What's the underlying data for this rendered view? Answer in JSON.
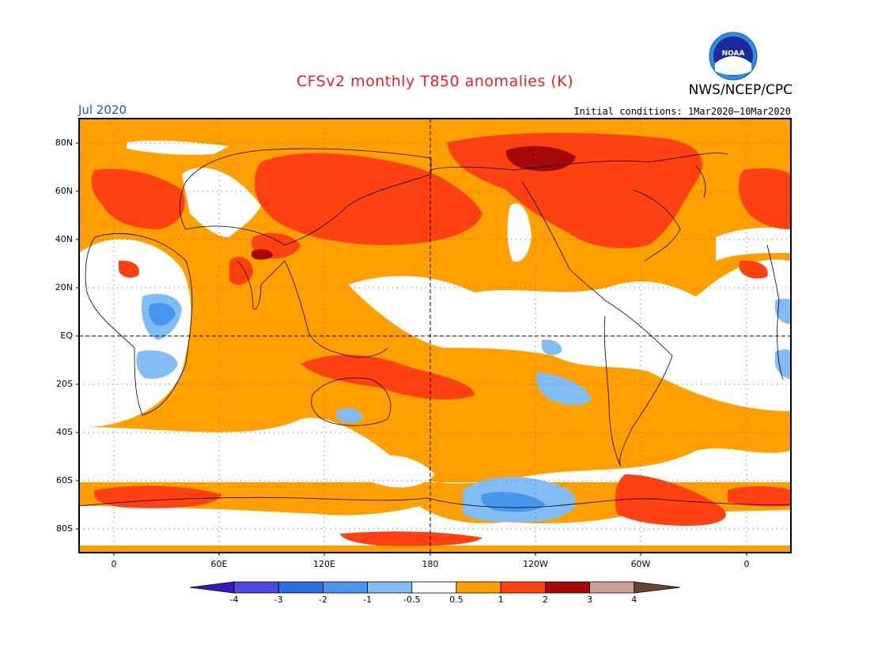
{
  "header": {
    "title": "CFSv2 monthly T850 anomalies (K)",
    "agency": "NWS/NCEP/CPC",
    "month": "Jul 2020",
    "initial_conditions": "Initial conditions: 1Mar2020–10Mar2020",
    "logo_text": "NOAA"
  },
  "map": {
    "lat_labels": [
      "80N",
      "60N",
      "40N",
      "20N",
      "EQ",
      "20S",
      "40S",
      "60S",
      "80S"
    ],
    "lon_labels": [
      "0",
      "60E",
      "120E",
      "180",
      "120W",
      "60W",
      "0"
    ],
    "grid": "dotted",
    "reference_lines": [
      "EQ",
      "180"
    ]
  },
  "colorbar": {
    "labels": [
      "-4",
      "-3",
      "-2",
      "-1",
      "-0.5",
      "0.5",
      "1",
      "2",
      "3",
      "4"
    ],
    "colors": [
      "#3a18c0",
      "#4c4ce0",
      "#2a6ee6",
      "#4696ee",
      "#82bcf4",
      "#ffffff",
      "#ffa000",
      "#ff4010",
      "#a40808",
      "#caa090",
      "#6a4430"
    ],
    "out_of_range_low": "#3a18c0",
    "out_of_range_high": "#6a4430"
  },
  "colors": {
    "background_anomaly": "#ffa000",
    "warm_1": "#ff4010",
    "warm_2": "#a40808",
    "cool_1": "#82bcf4",
    "cool_2": "#4696ee",
    "neutral": "#ffffff",
    "title_color": "#e8202a",
    "month_color": "#1f4fe0"
  }
}
